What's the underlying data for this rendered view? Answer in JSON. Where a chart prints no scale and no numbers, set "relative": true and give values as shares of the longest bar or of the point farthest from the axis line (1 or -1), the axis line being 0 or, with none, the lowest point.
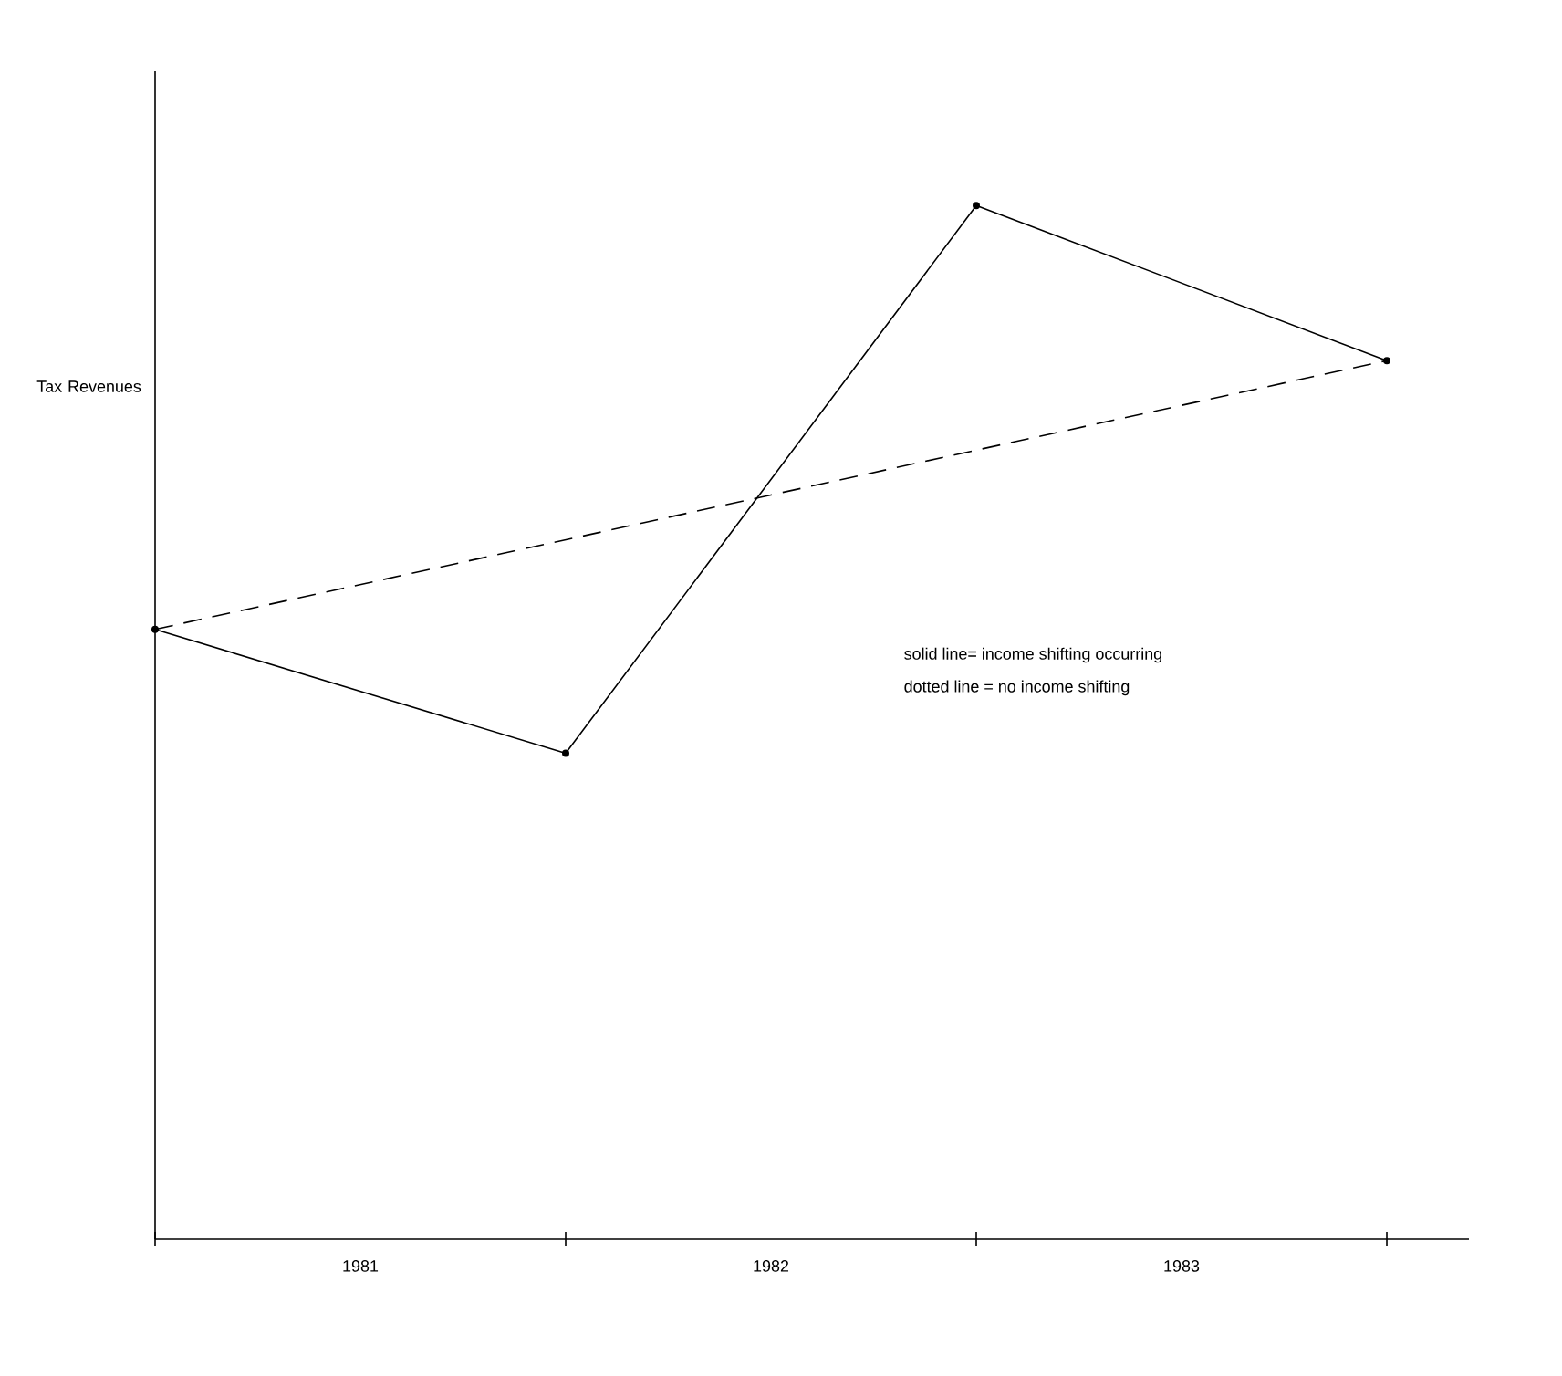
{
  "chart_data": {
    "type": "line",
    "relative": true,
    "ylabel": "Tax Revenues",
    "x": [
      1981,
      1982,
      1983,
      1984
    ],
    "xlim": [
      1981,
      1984.2
    ],
    "xticks": [
      {
        "value": 1981,
        "label": null
      },
      {
        "value": 1982,
        "label": null
      },
      {
        "value": 1983,
        "label": null
      },
      {
        "value": 1984,
        "label": null
      },
      {
        "value": 1981.5,
        "label": "1981"
      },
      {
        "value": 1982.5,
        "label": "1982"
      },
      {
        "value": 1983.5,
        "label": "1983"
      }
    ],
    "series": [
      {
        "color": "#000000",
        "values": [
          0.59,
          0.47,
          1,
          0.85
        ],
        "line_style": "solid",
        "marker": "circle"
      },
      {
        "color": "#000000",
        "x": [
          1981,
          1984
        ],
        "values": [
          0.59,
          0.85
        ],
        "line_style": "dashed",
        "marker": "none"
      }
    ],
    "annotations": [
      "solid line= income shifting occurring",
      "dotted line = no income shifting"
    ],
    "grid": false
  }
}
